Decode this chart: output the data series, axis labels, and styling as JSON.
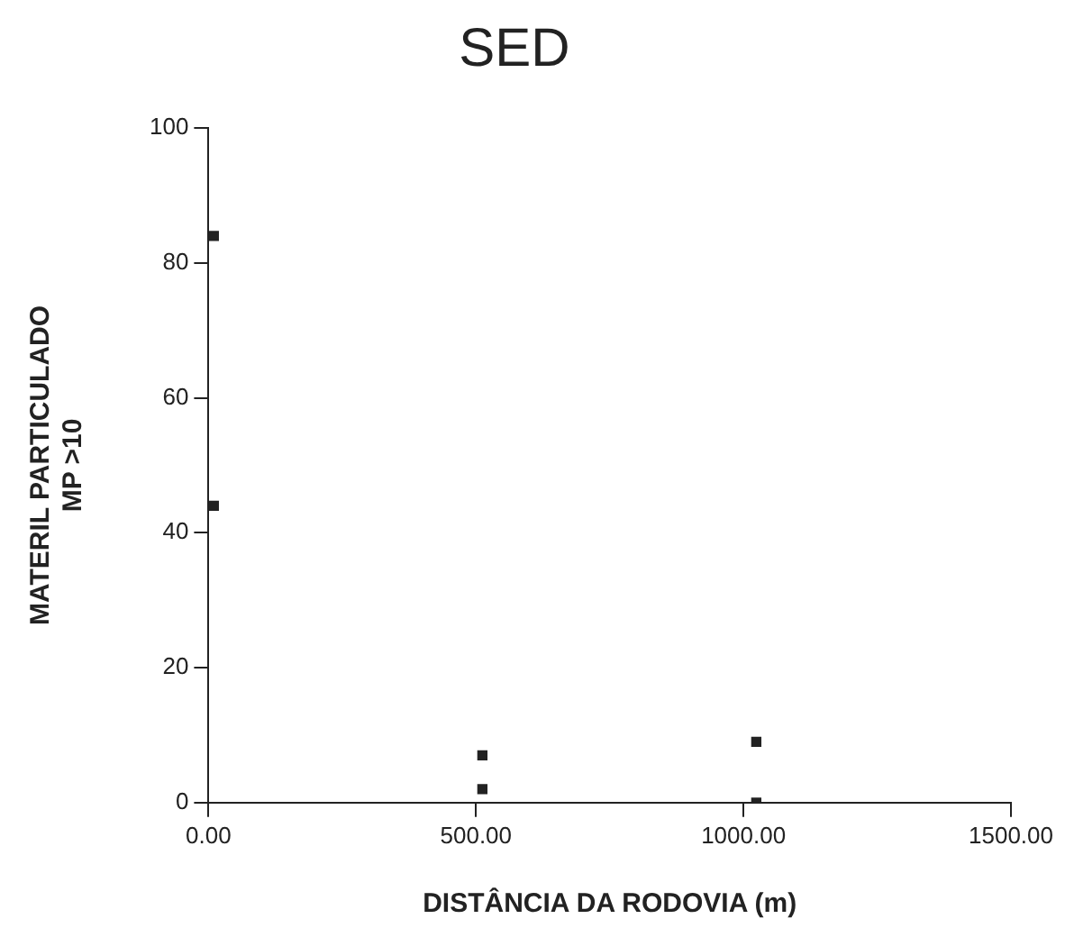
{
  "chart_data": {
    "type": "scatter",
    "title": "SED",
    "xlabel": "DISTÂNCIA DA RODOVIA (m)",
    "ylabel": "MATERIL PARTICULADO\nMP >10",
    "x": [
      10,
      10,
      512,
      512,
      1024,
      1024
    ],
    "series": [
      {
        "color": "#222222",
        "values": [
          84,
          44,
          7,
          2,
          9,
          0
        ]
      }
    ],
    "xlim": [
      0,
      1500
    ],
    "xticks": [
      {
        "value": 0,
        "label": "0.00"
      },
      {
        "value": 500,
        "label": "500.00"
      },
      {
        "value": 1000,
        "label": "1000.00"
      },
      {
        "value": 1500,
        "label": "1500.00"
      }
    ],
    "ylim": [
      0,
      100
    ],
    "yticks": [
      0,
      20,
      40,
      60,
      80,
      100
    ],
    "grid": false,
    "legend": false,
    "marker": "square"
  }
}
